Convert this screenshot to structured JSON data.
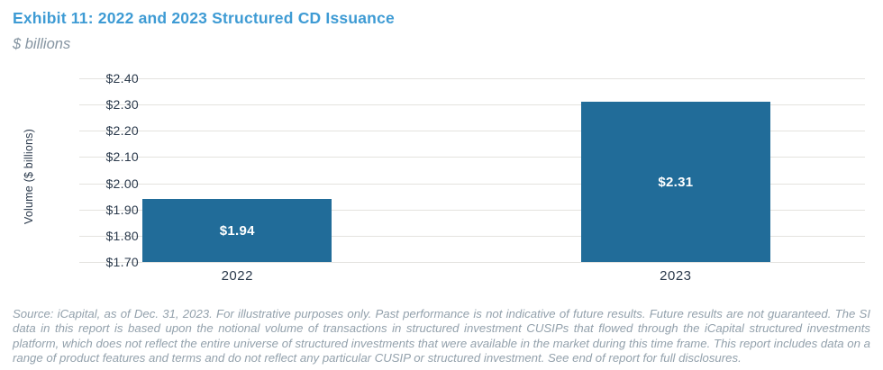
{
  "header": {
    "title": "Exhibit 11: 2022 and 2023 Structured CD Issuance",
    "subtitle": "$ billions"
  },
  "chart_data": {
    "type": "bar",
    "title": "Exhibit 11: 2022 and 2023 Structured CD Issuance",
    "subtitle": "$ billions",
    "categories": [
      "2022",
      "2023"
    ],
    "values": [
      1.94,
      2.31
    ],
    "value_labels": [
      "$1.94",
      "$2.31"
    ],
    "xlabel": "",
    "ylabel": "Volume ($ billions)",
    "ylim": [
      1.7,
      2.4
    ],
    "tick_values": [
      2.4,
      2.3,
      2.2,
      2.1,
      2.0,
      1.9,
      1.8,
      1.7
    ],
    "tick_labels": [
      "$2.40",
      "$2.30",
      "$2.20",
      "$2.10",
      "$2.00",
      "$1.90",
      "$1.80",
      "$1.70"
    ],
    "grid": "horizontal",
    "legend": "none",
    "bar_color": "#216C99",
    "bar_label_color": "#ffffff",
    "bar_centers_frac": [
      0.201,
      0.759
    ],
    "bar_width_frac": 0.241
  },
  "footnote": {
    "text": "Source: iCapital, as of Dec. 31, 2023. For illustrative purposes only. Past performance is not indicative of future results. Future results are not guaranteed. The SI data in this report is based upon the notional volume of transactions in structured investment CUSIPs that flowed through the iCapital structured investments platform, which does not reflect the entire universe of structured investments that were available in the market during this time frame. This report includes data on a range of product features and terms and do not reflect any particular CUSIP or structured investment. See end of report for full disclosures."
  }
}
